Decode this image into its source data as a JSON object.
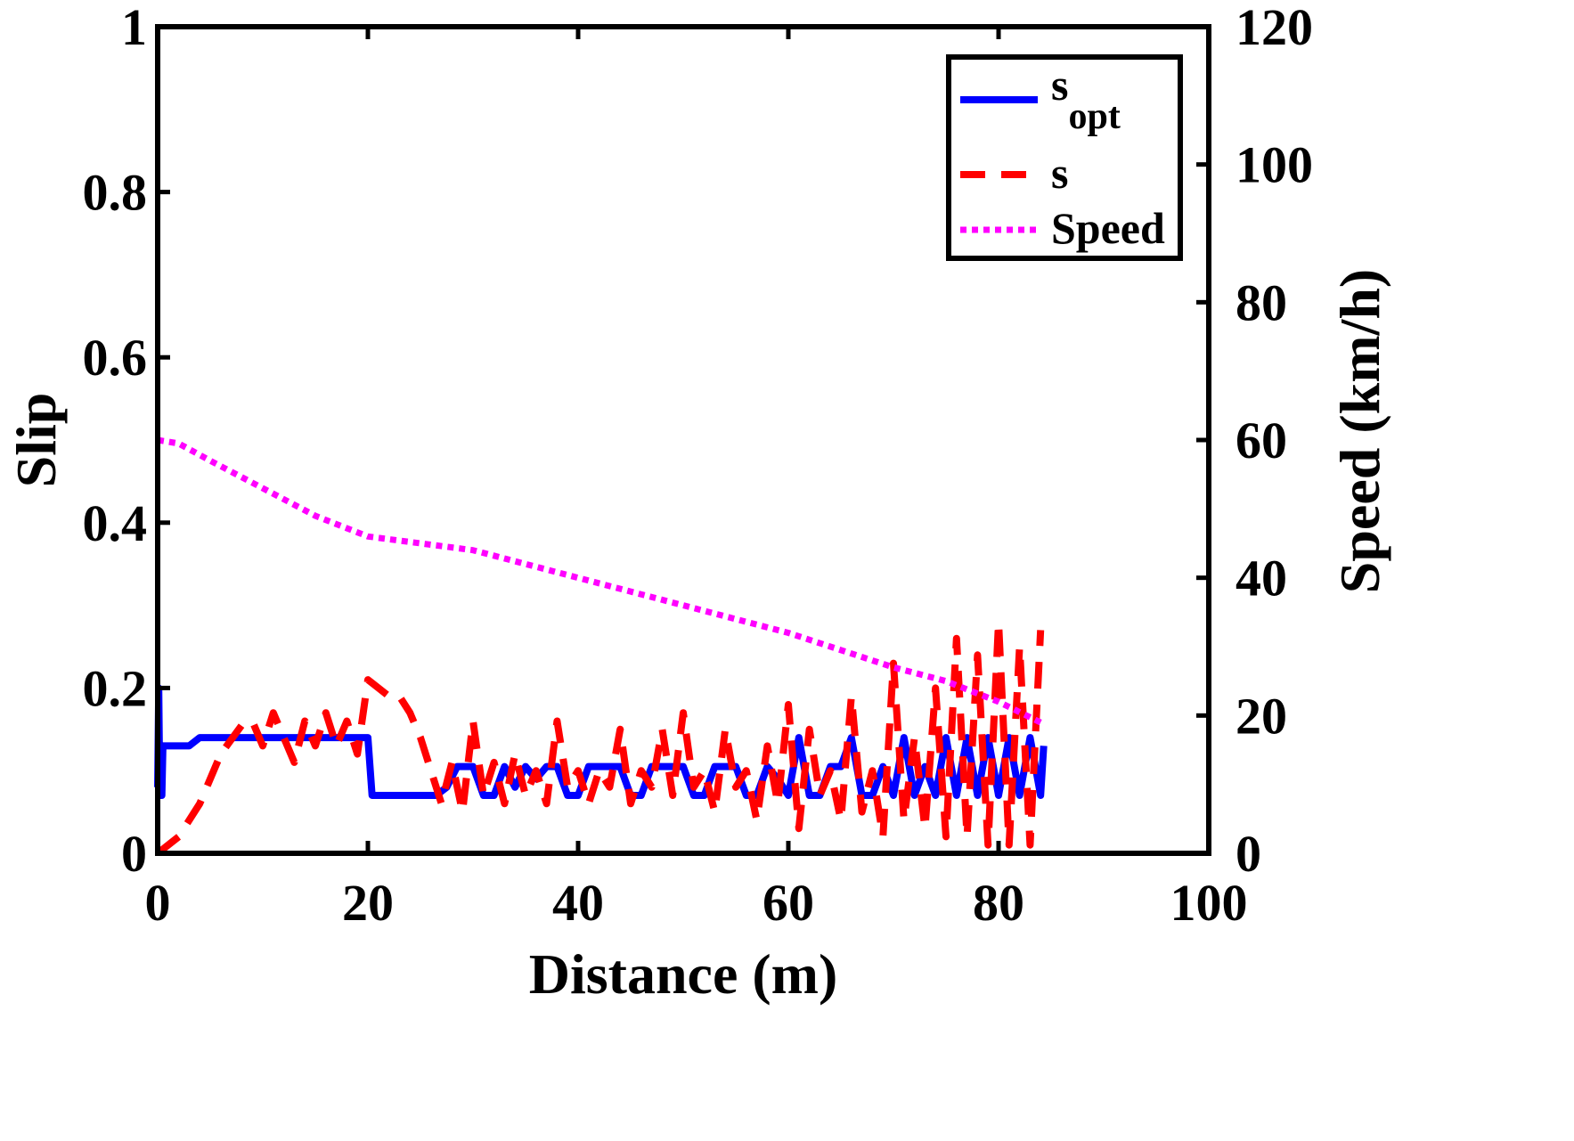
{
  "chart_data": {
    "type": "line",
    "xlabel": "Distance (m)",
    "ylabel_left": "Slip",
    "ylabel_right": "Speed (km/h)",
    "xlim": [
      0,
      100
    ],
    "ylim_left": [
      0,
      1
    ],
    "ylim_right": [
      0,
      120
    ],
    "x_ticks": [
      "0",
      "20",
      "40",
      "60",
      "80",
      "100"
    ],
    "y_left_ticks": [
      "0",
      "0.2",
      "0.4",
      "0.6",
      "0.8",
      "1"
    ],
    "y_right_ticks": [
      "0",
      "20",
      "40",
      "60",
      "80",
      "100",
      "120"
    ],
    "grid": false,
    "legend_position": "top-right",
    "series": [
      {
        "name": "s_opt",
        "label_main": "s",
        "label_sub": "opt",
        "axis": "left",
        "color": "#0000ff",
        "style": "solid",
        "x": [
          0,
          0.1,
          0.2,
          0.3,
          0.4,
          0.5,
          0.7,
          1,
          2,
          3,
          4,
          5,
          10,
          15,
          20,
          20.4,
          21,
          25,
          26.5,
          27.5,
          28.5,
          30,
          31,
          32,
          33,
          34,
          35,
          36,
          37,
          38,
          39,
          40,
          41,
          42,
          43,
          44,
          45,
          46,
          47,
          48,
          49,
          50,
          51,
          52,
          53,
          54,
          55,
          56,
          57,
          58,
          59,
          60,
          61,
          62,
          63,
          64,
          65,
          66,
          67,
          68,
          69,
          70,
          71,
          72,
          73,
          74,
          75,
          76,
          77,
          78,
          79,
          80,
          81,
          82,
          83,
          84,
          84.3
        ],
        "values": [
          0.08,
          0.2,
          0.07,
          0.13,
          0.07,
          0.13,
          0.13,
          0.13,
          0.13,
          0.13,
          0.14,
          0.14,
          0.14,
          0.14,
          0.14,
          0.07,
          0.07,
          0.07,
          0.07,
          0.08,
          0.105,
          0.105,
          0.07,
          0.07,
          0.105,
          0.08,
          0.105,
          0.09,
          0.105,
          0.105,
          0.07,
          0.07,
          0.105,
          0.105,
          0.105,
          0.105,
          0.07,
          0.07,
          0.105,
          0.105,
          0.105,
          0.105,
          0.07,
          0.07,
          0.105,
          0.105,
          0.105,
          0.07,
          0.07,
          0.105,
          0.09,
          0.07,
          0.14,
          0.07,
          0.07,
          0.105,
          0.105,
          0.14,
          0.07,
          0.07,
          0.105,
          0.07,
          0.14,
          0.07,
          0.105,
          0.07,
          0.14,
          0.07,
          0.14,
          0.07,
          0.14,
          0.07,
          0.14,
          0.07,
          0.14,
          0.07,
          0.13
        ]
      },
      {
        "name": "s",
        "axis": "left",
        "color": "#ff0000",
        "style": "dashed",
        "x": [
          0,
          2,
          4,
          6,
          8,
          9,
          10,
          11,
          12,
          13,
          14,
          15,
          16,
          17,
          18,
          19,
          20,
          21,
          22,
          23,
          24,
          25,
          26,
          27,
          28,
          29,
          30,
          31,
          32,
          33,
          34,
          35,
          36,
          37,
          38,
          39,
          40,
          41,
          42,
          43,
          44,
          45,
          46,
          47,
          48,
          49,
          50,
          51,
          52,
          53,
          54,
          55,
          56,
          57,
          58,
          59,
          60,
          61,
          62,
          63,
          64,
          65,
          66,
          67,
          68,
          69,
          70,
          71,
          72,
          73,
          74,
          75,
          76,
          77,
          78,
          79,
          80,
          81,
          82,
          83,
          84
        ],
        "values": [
          0,
          0.02,
          0.06,
          0.12,
          0.155,
          0.16,
          0.13,
          0.17,
          0.14,
          0.11,
          0.16,
          0.13,
          0.17,
          0.13,
          0.16,
          0.12,
          0.21,
          0.2,
          0.19,
          0.19,
          0.17,
          0.14,
          0.1,
          0.06,
          0.11,
          0.05,
          0.16,
          0.07,
          0.11,
          0.06,
          0.12,
          0.07,
          0.1,
          0.06,
          0.16,
          0.08,
          0.1,
          0.06,
          0.1,
          0.08,
          0.15,
          0.06,
          0.1,
          0.08,
          0.15,
          0.07,
          0.17,
          0.08,
          0.1,
          0.05,
          0.15,
          0.08,
          0.1,
          0.04,
          0.13,
          0.06,
          0.18,
          0.03,
          0.15,
          0.07,
          0.1,
          0.04,
          0.19,
          0.05,
          0.1,
          0.02,
          0.23,
          0.04,
          0.14,
          0.03,
          0.2,
          0.02,
          0.26,
          0.02,
          0.24,
          0.01,
          0.28,
          0.01,
          0.25,
          0.01,
          0.27
        ]
      },
      {
        "name": "Speed",
        "axis": "right",
        "color": "#ff00ff",
        "style": "dotted",
        "x": [
          0,
          2,
          5,
          10,
          15,
          20,
          30,
          40,
          50,
          60,
          70,
          75,
          80,
          84
        ],
        "values": [
          60,
          59.5,
          57,
          53,
          49,
          46,
          44,
          40,
          36,
          32,
          27,
          25,
          22,
          19
        ]
      }
    ]
  }
}
